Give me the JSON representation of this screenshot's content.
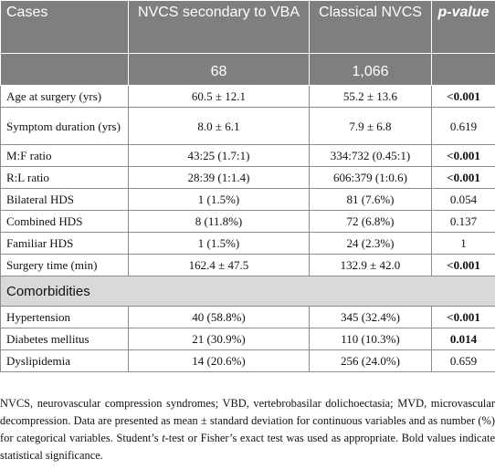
{
  "header": {
    "col1": "Cases",
    "col2": "NVCS secondary to VBA",
    "col3": "Classical NVCS",
    "col4": "p-value",
    "n_vba": "68",
    "n_classical": "1,066"
  },
  "rows": [
    {
      "label": "Age at surgery (yrs)",
      "vba": "60.5 ± 12.1",
      "classical": "55.2 ± 13.6",
      "p": "<0.001"
    },
    {
      "label": "Symptom duration (yrs)",
      "vba": "8.0 ± 6.1",
      "classical": "7.9 ± 6.8",
      "p": "0.619"
    },
    {
      "label": "M:F ratio",
      "vba": "43:25 (1.7:1)",
      "classical": "334:732 (0.45:1)",
      "p": "<0.001"
    },
    {
      "label": "R:L ratio",
      "vba": "28:39 (1:1.4)",
      "classical": "606:379 (1:0.6)",
      "p": "<0.001"
    },
    {
      "label": "Bilateral HDS",
      "vba": "1 (1.5%)",
      "classical": "81 (7.6%)",
      "p": "0.054"
    },
    {
      "label": "Combined HDS",
      "vba": "8 (11.8%)",
      "classical": "72 (6.8%)",
      "p": "0.137"
    },
    {
      "label": "Familiar HDS",
      "vba": "1 (1.5%)",
      "classical": "24 (2.3%)",
      "p": "1"
    },
    {
      "label": "Surgery time (min)",
      "vba": "162.4 ± 47.5",
      "classical": "132.9 ± 42.0",
      "p": "<0.001"
    }
  ],
  "section": "Comorbidities",
  "comorbidity_rows": [
    {
      "label": "Hypertension",
      "vba": "40 (58.8%)",
      "classical": "345 (32.4%)",
      "p": "<0.001"
    },
    {
      "label": "Diabetes mellitus",
      "vba": "21 (30.9%)",
      "classical": "110 (10.3%)",
      "p": "0.014"
    },
    {
      "label": "Dyslipidemia",
      "vba": "14 (20.6%)",
      "classical": "256 (24.0%)",
      "p": "0.659"
    }
  ],
  "footnote": {
    "part1": "NVCS, neurovascular compression syndromes; VBD, vertebrobasilar dolichoectasia; MVD, microvascular decompression. Data are presented as mean ± standard deviation for continuous variables and as number (%) for categorical variables. Student’s ",
    "italic": "t",
    "part2": "-test or Fisher’s exact test was used as appropriate. Bold values indicate statistical significance."
  }
}
